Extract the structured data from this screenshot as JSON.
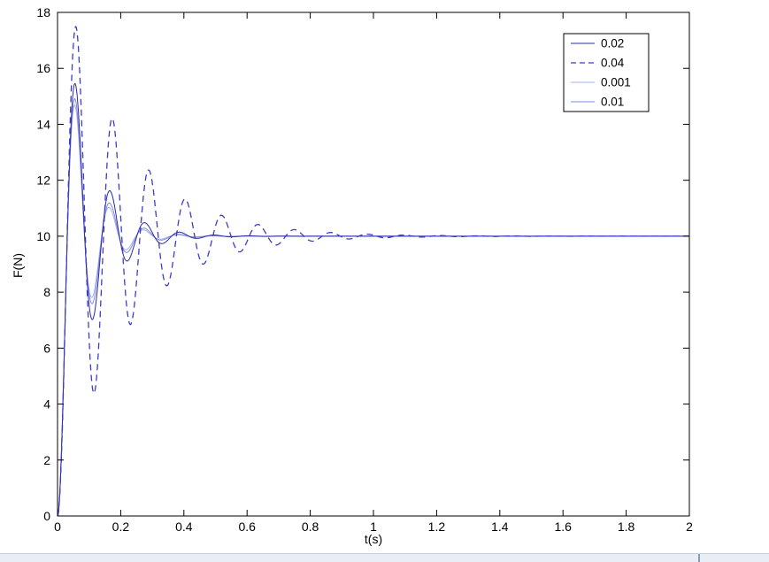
{
  "chart_data": {
    "type": "line",
    "title": "",
    "xlabel": "t(s)",
    "ylabel": "F(N)",
    "xlim": [
      0,
      2
    ],
    "ylim": [
      0,
      18
    ],
    "grid": false,
    "x_ticks": {
      "values": [
        0,
        0.2,
        0.4,
        0.6,
        0.8,
        1,
        1.2,
        1.4,
        1.6,
        1.8,
        2
      ],
      "labels": [
        "0",
        "0.2",
        "0.4",
        "0.6",
        "0.8",
        "1",
        "1.2",
        "1.4",
        "1.6",
        "1.8",
        "2"
      ]
    },
    "y_ticks": {
      "values": [
        0,
        2,
        4,
        6,
        8,
        10,
        12,
        14,
        16,
        18
      ],
      "labels": [
        "0",
        "2",
        "4",
        "6",
        "8",
        "10",
        "12",
        "14",
        "16",
        "18"
      ]
    },
    "steady_state_value": 10,
    "legend": {
      "position": "top-right",
      "border": true,
      "entries": [
        "0.02",
        "0.04",
        "0.001",
        "0.01"
      ]
    },
    "series": [
      {
        "name": "0.02",
        "color": "#2b2ba6",
        "dash": false,
        "width": 1,
        "draw_order": 3,
        "model": {
          "kind": "underdamped-step",
          "K": 10,
          "sigma": 11,
          "omega_rad_s": 57.1
        },
        "first_peak": {
          "t": 0.055,
          "F": 15.4
        }
      },
      {
        "name": "0.04",
        "color": "#3c3cc8",
        "dash": true,
        "width": 1.3,
        "draw_order": 4,
        "model": {
          "kind": "underdamped-step",
          "K": 10,
          "sigma": 5,
          "omega_rad_s": 54.5
        },
        "first_peak": {
          "t": 0.058,
          "F": 17.6
        }
      },
      {
        "name": "0.001",
        "color": "#a9b0ea",
        "dash": false,
        "width": 1,
        "draw_order": 1,
        "model": {
          "kind": "underdamped-step",
          "K": 10,
          "sigma": 14,
          "omega_rad_s": 58.0
        },
        "first_peak": {
          "t": 0.054,
          "F": 14.6
        }
      },
      {
        "name": "0.01",
        "color": "#7f89e0",
        "dash": false,
        "width": 1,
        "draw_order": 2,
        "model": {
          "kind": "underdamped-step",
          "K": 10,
          "sigma": 13,
          "omega_rad_s": 57.5
        },
        "first_peak": {
          "t": 0.055,
          "F": 14.9
        }
      }
    ]
  },
  "window": {
    "bottom_strip_color": "#e9eef6"
  }
}
